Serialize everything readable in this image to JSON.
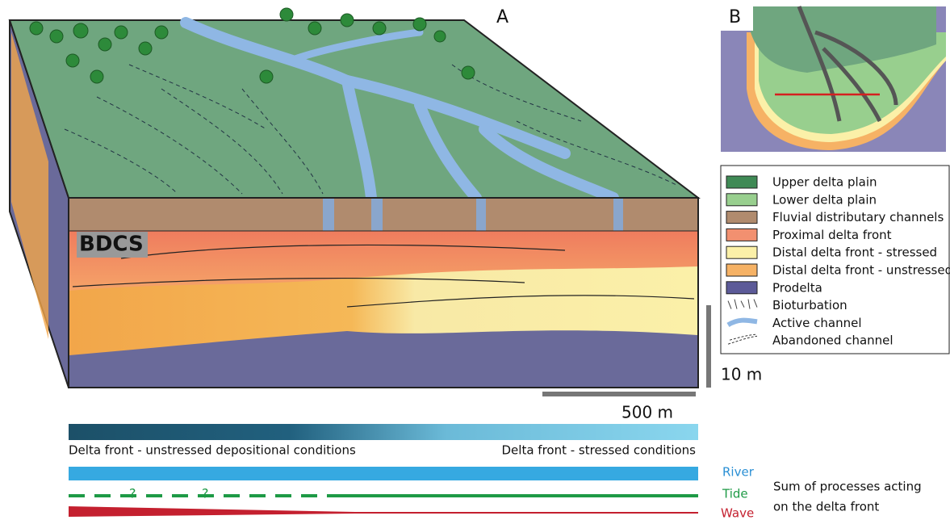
{
  "panels": {
    "a": {
      "label": "A",
      "block_label": "BDCS"
    },
    "b": {
      "label": "B"
    }
  },
  "legend": {
    "items": [
      {
        "label": "Upper delta plain"
      },
      {
        "label": "Lower delta plain"
      },
      {
        "label": "Fluvial distributary channels"
      },
      {
        "label": "Proximal delta front"
      },
      {
        "label": "Distal delta front - stressed"
      },
      {
        "label": "Distal delta front - unstressed"
      },
      {
        "label": "Prodelta"
      },
      {
        "label": "Bioturbation"
      },
      {
        "label": "Active channel"
      },
      {
        "label": "Abandoned channel"
      }
    ]
  },
  "scale_bars": {
    "vertical": "10 m",
    "horizontal": "500 m"
  },
  "gradient": {
    "left_label": "Delta front - unstressed depositional conditions",
    "right_label": "Delta front - stressed conditions"
  },
  "processes": {
    "items": [
      {
        "label": "River"
      },
      {
        "label": "Tide"
      },
      {
        "label": "Wave"
      }
    ],
    "question_marks": [
      "?",
      "?"
    ],
    "summary": [
      "Sum of processes acting",
      "on the delta front"
    ]
  }
}
